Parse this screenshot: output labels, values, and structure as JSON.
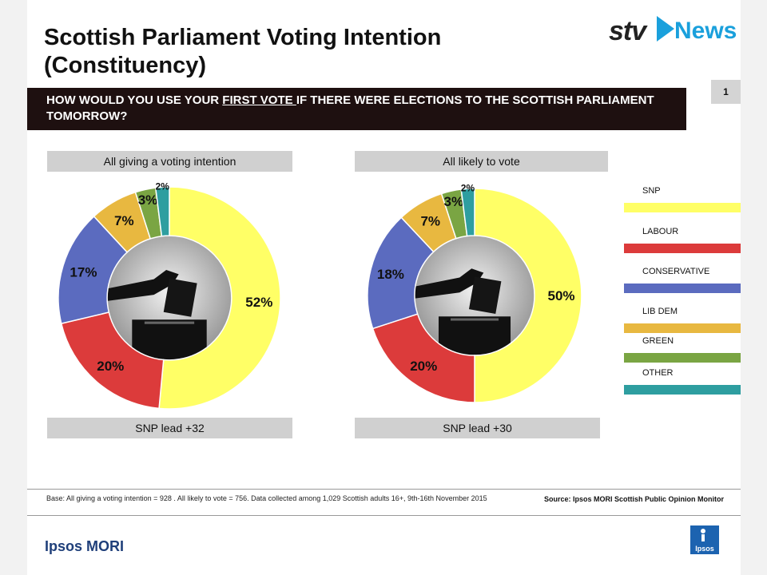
{
  "title": "Scottish Parliament Voting Intention (Constituency)",
  "logo": {
    "brand": "stv",
    "product": "News"
  },
  "question": {
    "before": "HOW WOULD YOU USE YOUR ",
    "underlined": "FIRST VOTE ",
    "after": "IF THERE WERE ELECTIONS TO THE SCOTTISH PARLIAMENT TOMORROW?"
  },
  "slide_number": "1",
  "colors": {
    "SNP": "#ffff66",
    "LABOUR": "#dc3b3b",
    "CONSERVATIVE": "#5b6bbf",
    "LIB DEM": "#e8b840",
    "GREEN": "#7aa543",
    "OTHER": "#2e9ea0"
  },
  "chart_data": [
    {
      "type": "pie",
      "title": "All giving a voting intention",
      "categories": [
        "SNP",
        "LABOUR",
        "CONSERVATIVE",
        "LIB DEM",
        "GREEN",
        "OTHER"
      ],
      "values": [
        52,
        20,
        17,
        7,
        3,
        2
      ],
      "labels": [
        "52%",
        "20%",
        "17%",
        "7%",
        "3%",
        "2%"
      ],
      "footer": "SNP lead +32"
    },
    {
      "type": "pie",
      "title": "All likely to vote",
      "categories": [
        "SNP",
        "LABOUR",
        "CONSERVATIVE",
        "LIB DEM",
        "GREEN",
        "OTHER"
      ],
      "values": [
        50,
        20,
        18,
        7,
        3,
        2
      ],
      "labels": [
        "50%",
        "20%",
        "18%",
        "7%",
        "3%",
        "2%"
      ],
      "footer": "SNP lead +30"
    }
  ],
  "legend": [
    "SNP",
    "LABOUR",
    "CONSERVATIVE",
    "LIB DEM",
    "GREEN",
    "OTHER"
  ],
  "base_note": "Base: All giving a voting intention = 928 . All likely to vote = 756. Data collected among 1,029 Scottish adults 16+, 9th-16th November 2015",
  "source": "Source: Ipsos MORI Scottish Public Opinion Monitor",
  "footer_brand": "Ipsos MORI",
  "footer_logo_text": "Ipsos"
}
